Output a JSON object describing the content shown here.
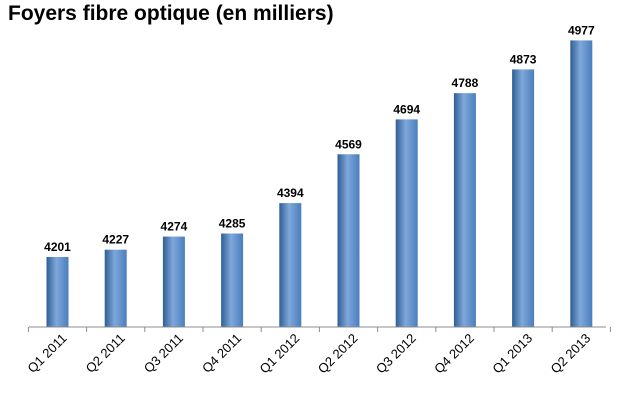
{
  "chart_data": {
    "type": "bar",
    "title": "Foyers fibre optique (en milliers)",
    "categories": [
      "Q1 2011",
      "Q2 2011",
      "Q3 2011",
      "Q4 2011",
      "Q1 2012",
      "Q2 2012",
      "Q3 2012",
      "Q4 2012",
      "Q1 2013",
      "Q2 2013"
    ],
    "values": [
      4201,
      4227,
      4274,
      4285,
      4394,
      4569,
      4694,
      4788,
      4873,
      4977
    ],
    "ylim": [
      3950,
      5000
    ],
    "grid": false,
    "legend": "none",
    "data_labels": true,
    "colors": {
      "bar_main": "#4a7ebd",
      "bar_light": "#7fa8da",
      "bar_dark": "#2f5d95",
      "axis": "#8c8c8c"
    }
  }
}
